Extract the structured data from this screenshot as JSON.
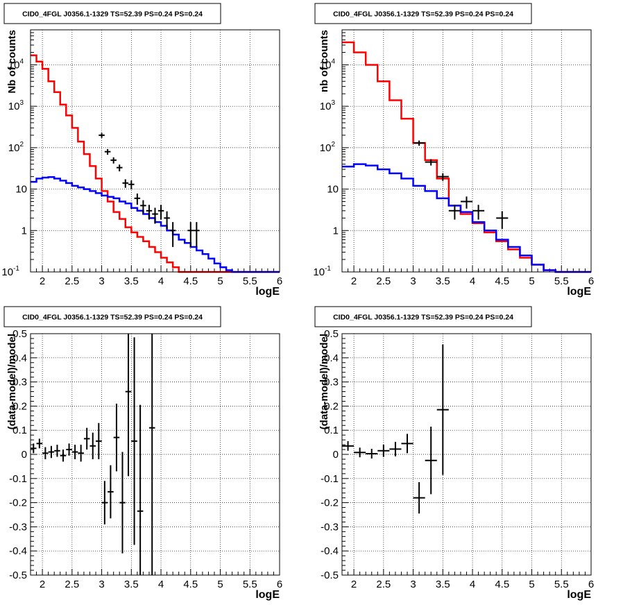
{
  "chart_data": [
    {
      "type": "histogram",
      "title": "CID0_4FGL J0356.1-1329 TS=52.39 PS=0.24 PS=0.24",
      "xlabel": "logE",
      "ylabel": "Nb of counts",
      "xlim": [
        1.8,
        6
      ],
      "ylim": [
        0.1,
        70000
      ],
      "yscale": "log",
      "grid": true,
      "xticks": [
        "2",
        "2.5",
        "3",
        "3.5",
        "4",
        "4.5",
        "5",
        "5.5",
        "6"
      ],
      "yticks": [
        "10^-1",
        "1",
        "10",
        "10^2",
        "10^3",
        "10^4"
      ],
      "bin_edges": [
        1.8,
        1.9,
        2.0,
        2.1,
        2.2,
        2.3,
        2.4,
        2.5,
        2.6,
        2.7,
        2.8,
        2.9,
        3.0,
        3.1,
        3.2,
        3.3,
        3.4,
        3.5,
        3.6,
        3.7,
        3.8,
        3.9,
        4.0,
        4.1,
        4.2,
        4.3,
        4.4,
        4.5,
        4.6,
        4.7,
        4.8,
        4.9,
        5.0,
        5.1,
        5.2,
        5.3,
        5.4,
        5.5,
        5.6,
        5.7,
        5.8,
        5.9,
        6.0
      ],
      "series": [
        {
          "color": "#ff0000",
          "values": [
            17000,
            12000,
            8000,
            4000,
            2200,
            1100,
            600,
            300,
            140,
            70,
            36,
            18,
            9,
            5,
            2.8,
            1.9,
            1.2,
            0.9,
            0.7,
            0.55,
            0.4,
            0.3,
            0.22,
            0.17,
            0.13,
            0.1,
            0.1,
            0.1,
            0.1,
            0.1,
            0.1,
            0.1,
            0.1,
            0.1,
            0.1,
            0.1,
            0.1,
            0.1,
            0.1,
            0.1,
            0.1,
            0.1
          ]
        },
        {
          "color": "#0000ff",
          "values": [
            15,
            18,
            19,
            19.5,
            18,
            16,
            14,
            12,
            11,
            10,
            9,
            8,
            7,
            6.5,
            6,
            5,
            4.5,
            3.5,
            3,
            2.5,
            2,
            1.6,
            1.3,
            1,
            0.8,
            0.6,
            0.5,
            0.4,
            0.33,
            0.27,
            0.21,
            0.16,
            0.13,
            0.11,
            0.1,
            0.1,
            0.1,
            0.1,
            0.1,
            0.1,
            0.1,
            0.1
          ]
        },
        {
          "color": "#000000",
          "style": "points",
          "x": [
            3.0,
            3.1,
            3.2,
            3.3,
            3.4,
            3.5,
            3.6,
            3.7,
            3.8,
            3.9,
            4.0,
            4.1,
            4.2,
            4.5,
            4.6
          ],
          "y": [
            200,
            80,
            50,
            33,
            14,
            13,
            6,
            4,
            3,
            2.5,
            3,
            2,
            1,
            1,
            1
          ],
          "xerr": 0.05
        }
      ]
    },
    {
      "type": "histogram",
      "title": "CID0_4FGL J0356.1-1329 TS=52.39 PS=0.24 PS=0.24",
      "xlabel": "logE",
      "ylabel": "nb of counts",
      "xlim": [
        1.8,
        6
      ],
      "ylim": [
        0.1,
        70000
      ],
      "yscale": "log",
      "grid": true,
      "xticks": [
        "2",
        "2.5",
        "3",
        "3.5",
        "4",
        "4.5",
        "5",
        "5.5",
        "6"
      ],
      "yticks": [
        "10^-1",
        "1",
        "10",
        "10^2",
        "10^3",
        "10^4"
      ],
      "bin_edges": [
        1.8,
        2.0,
        2.2,
        2.4,
        2.6,
        2.8,
        3.0,
        3.2,
        3.4,
        3.6,
        3.8,
        4.0,
        4.2,
        4.4,
        4.6,
        4.8,
        5.0,
        5.2,
        5.4,
        5.6,
        5.8,
        6.0
      ],
      "series": [
        {
          "color": "#ff0000",
          "values": [
            35000,
            20000,
            10000,
            4000,
            1400,
            500,
            130,
            50,
            18,
            4,
            2.5,
            1.5,
            0.9,
            0.55,
            0.35,
            0.22,
            0.15,
            0.11,
            0.1,
            0.1,
            0.1
          ]
        },
        {
          "color": "#0000ff",
          "values": [
            35,
            40,
            37,
            30,
            24,
            18,
            12,
            9,
            6,
            4,
            2.8,
            1.6,
            1,
            0.6,
            0.4,
            0.25,
            0.15,
            0.11,
            0.1,
            0.1,
            0.1
          ]
        },
        {
          "color": "#000000",
          "style": "points",
          "x": [
            3.1,
            3.3,
            3.5,
            3.7,
            3.9,
            4.1,
            4.5
          ],
          "y": [
            130,
            45,
            20,
            3,
            5,
            3,
            2
          ],
          "xerr": 0.1
        }
      ]
    },
    {
      "type": "scatter",
      "title": "CID0_4FGL J0356.1-1329 TS=52.39 PS=0.24 PS=0.24",
      "xlabel": "logE",
      "ylabel": "(data-model)/model",
      "xlim": [
        1.8,
        6
      ],
      "ylim": [
        -0.5,
        0.5
      ],
      "grid": true,
      "xticks": [
        "2",
        "2.5",
        "3",
        "3.5",
        "4",
        "4.5",
        "5",
        "5.5",
        "6"
      ],
      "yticks": [
        "-0.5",
        "-0.4",
        "-0.3",
        "-0.2",
        "-0.1",
        "0",
        "0.1",
        "0.2",
        "0.3",
        "0.4",
        "0.5"
      ],
      "points": [
        {
          "x": 1.85,
          "y": 0.025,
          "yerr": 0.02
        },
        {
          "x": 1.95,
          "y": 0.045,
          "yerr": 0.02
        },
        {
          "x": 2.05,
          "y": 0.005,
          "yerr": 0.025
        },
        {
          "x": 2.15,
          "y": 0.01,
          "yerr": 0.025
        },
        {
          "x": 2.25,
          "y": 0.015,
          "yerr": 0.025
        },
        {
          "x": 2.35,
          "y": -0.005,
          "yerr": 0.025
        },
        {
          "x": 2.45,
          "y": 0.02,
          "yerr": 0.025
        },
        {
          "x": 2.55,
          "y": 0.01,
          "yerr": 0.03
        },
        {
          "x": 2.65,
          "y": 0.005,
          "yerr": 0.035
        },
        {
          "x": 2.75,
          "y": 0.065,
          "yerr": 0.045
        },
        {
          "x": 2.85,
          "y": 0.035,
          "yerr": 0.055
        },
        {
          "x": 2.95,
          "y": 0.055,
          "yerr": 0.075
        },
        {
          "x": 3.05,
          "y": -0.2,
          "yerr": 0.09
        },
        {
          "x": 3.15,
          "y": -0.155,
          "yerr": 0.11
        },
        {
          "x": 3.25,
          "y": 0.07,
          "yerr": 0.14
        },
        {
          "x": 3.35,
          "y": -0.2,
          "yerr": 0.21
        },
        {
          "x": 3.45,
          "y": 0.26,
          "yerr": 0.35
        },
        {
          "x": 3.55,
          "y": 0.055,
          "yerr": 0.43
        },
        {
          "x": 3.65,
          "y": -0.235,
          "yerr": 0.44
        },
        {
          "x": 3.85,
          "y": 0.11,
          "yerr": 0.62
        }
      ],
      "xerr": 0.05
    },
    {
      "type": "scatter",
      "title": "CID0_4FGL J0356.1-1329 TS=52.39 PS=0.24 PS=0.24",
      "xlabel": "logE",
      "ylabel": "(data-model)/model",
      "xlim": [
        1.8,
        6
      ],
      "ylim": [
        -0.5,
        0.5
      ],
      "grid": true,
      "xticks": [
        "2",
        "2.5",
        "3",
        "3.5",
        "4",
        "4.5",
        "5",
        "5.5",
        "6"
      ],
      "yticks": [
        "-0.5",
        "-0.4",
        "-0.3",
        "-0.2",
        "-0.1",
        "0",
        "0.1",
        "0.2",
        "0.3",
        "0.4",
        "0.5"
      ],
      "points": [
        {
          "x": 1.9,
          "y": 0.035,
          "yerr": 0.02
        },
        {
          "x": 2.1,
          "y": 0.008,
          "yerr": 0.02
        },
        {
          "x": 2.3,
          "y": 0.003,
          "yerr": 0.02
        },
        {
          "x": 2.5,
          "y": 0.015,
          "yerr": 0.025
        },
        {
          "x": 2.7,
          "y": 0.022,
          "yerr": 0.03
        },
        {
          "x": 2.9,
          "y": 0.045,
          "yerr": 0.04
        },
        {
          "x": 3.1,
          "y": -0.18,
          "yerr": 0.065
        },
        {
          "x": 3.3,
          "y": -0.025,
          "yerr": 0.14
        },
        {
          "x": 3.5,
          "y": 0.185,
          "yerr": 0.27
        }
      ],
      "xerr": 0.1
    }
  ]
}
